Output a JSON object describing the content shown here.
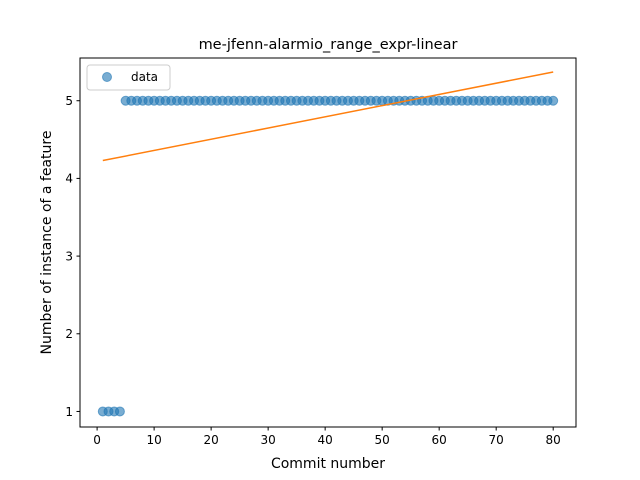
{
  "chart_data": {
    "type": "scatter",
    "title": "me-jfenn-alarmio_range_expr-linear",
    "xlabel": "Commit number",
    "ylabel": "Number of instance of a feature",
    "xlim": [
      -3.0,
      84.0
    ],
    "ylim": [
      0.8,
      5.55
    ],
    "xticks": [
      0,
      10,
      20,
      30,
      40,
      50,
      60,
      70,
      80
    ],
    "yticks": [
      1,
      2,
      3,
      4,
      5
    ],
    "grid": false,
    "legend": {
      "position": "upper-left",
      "entries": [
        "data"
      ]
    },
    "series": [
      {
        "name": "data",
        "kind": "scatter",
        "color": "#1f77b4",
        "x": [
          1,
          2,
          3,
          4,
          5,
          6,
          7,
          8,
          9,
          10,
          11,
          12,
          13,
          14,
          15,
          16,
          17,
          18,
          19,
          20,
          21,
          22,
          23,
          24,
          25,
          26,
          27,
          28,
          29,
          30,
          31,
          32,
          33,
          34,
          35,
          36,
          37,
          38,
          39,
          40,
          41,
          42,
          43,
          44,
          45,
          46,
          47,
          48,
          49,
          50,
          51,
          52,
          53,
          54,
          55,
          56,
          57,
          58,
          59,
          60,
          61,
          62,
          63,
          64,
          65,
          66,
          67,
          68,
          69,
          70,
          71,
          72,
          73,
          74,
          75,
          76,
          77,
          78,
          79,
          80
        ],
        "y": [
          1,
          1,
          1,
          1,
          5,
          5,
          5,
          5,
          5,
          5,
          5,
          5,
          5,
          5,
          5,
          5,
          5,
          5,
          5,
          5,
          5,
          5,
          5,
          5,
          5,
          5,
          5,
          5,
          5,
          5,
          5,
          5,
          5,
          5,
          5,
          5,
          5,
          5,
          5,
          5,
          5,
          5,
          5,
          5,
          5,
          5,
          5,
          5,
          5,
          5,
          5,
          5,
          5,
          5,
          5,
          5,
          5,
          5,
          5,
          5,
          5,
          5,
          5,
          5,
          5,
          5,
          5,
          5,
          5,
          5,
          5,
          5,
          5,
          5,
          5,
          5,
          5,
          5,
          5,
          5
        ]
      },
      {
        "kind": "line",
        "color": "#ff7f0e",
        "x": [
          1,
          80
        ],
        "y": [
          4.23,
          5.37
        ]
      }
    ]
  }
}
